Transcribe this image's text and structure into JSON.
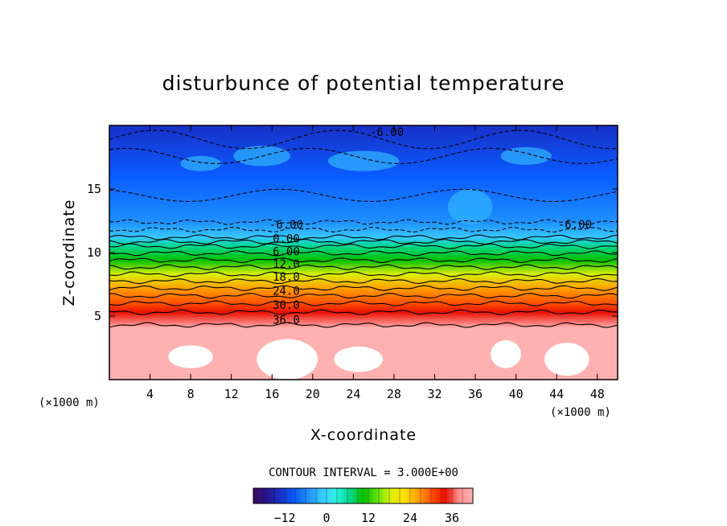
{
  "chart_data": {
    "type": "heatmap",
    "title": "disturbunce of potential temperature",
    "xlabel": "X-coordinate",
    "ylabel": "Z-coordinate",
    "x_unit": "(×1000 m)",
    "z_unit": "(×1000 m)",
    "xlim": [
      0,
      50
    ],
    "ylim": [
      0,
      20
    ],
    "x_ticks": [
      4,
      8,
      12,
      16,
      20,
      24,
      28,
      32,
      36,
      40,
      44,
      48
    ],
    "y_ticks": [
      5,
      10,
      15
    ],
    "contour_interval_text": "CONTOUR INTERVAL = 3.000E+00",
    "contour_interval": 3.0,
    "colorbar": {
      "min": -21,
      "max": 42,
      "ticks": [
        -12,
        0,
        12,
        24,
        36
      ],
      "colors": [
        "#3a0a5e",
        "#2a1490",
        "#1830c8",
        "#0a5cff",
        "#1e90ff",
        "#38c8ff",
        "#30f0e0",
        "#00d890",
        "#00c000",
        "#60e000",
        "#d8f000",
        "#ffe000",
        "#ffa000",
        "#ff5000",
        "#e81000",
        "#ff9090",
        "#ffb0b0"
      ]
    },
    "contour_labels": [
      {
        "text": "-6.00",
        "x": 27.3,
        "z": 19.5
      },
      {
        "text": "-6.00",
        "x": 17.4,
        "z": 12.2
      },
      {
        "text": "-6.00",
        "x": 45.8,
        "z": 12.2
      },
      {
        "text": "0.00",
        "x": 17.4,
        "z": 11.1
      },
      {
        "text": "6.00",
        "x": 17.4,
        "z": 10.1
      },
      {
        "text": "12.0",
        "x": 17.4,
        "z": 9.1
      },
      {
        "text": "18.0",
        "x": 17.4,
        "z": 8.1
      },
      {
        "text": "24.0",
        "x": 17.4,
        "z": 7.0
      },
      {
        "text": "30.0",
        "x": 17.4,
        "z": 5.9
      },
      {
        "text": "36.0",
        "x": 17.4,
        "z": 4.7
      }
    ],
    "vertical_profile": [
      {
        "z": 0.0,
        "value": 42
      },
      {
        "z": 4.1,
        "value": 40
      },
      {
        "z": 4.3,
        "value": 36
      },
      {
        "z": 5.3,
        "value": 33
      },
      {
        "z": 6.0,
        "value": 30
      },
      {
        "z": 7.2,
        "value": 24
      },
      {
        "z": 8.3,
        "value": 18
      },
      {
        "z": 9.4,
        "value": 12
      },
      {
        "z": 10.5,
        "value": 6
      },
      {
        "z": 11.2,
        "value": 0
      },
      {
        "z": 12.4,
        "value": -6
      },
      {
        "z": 16.0,
        "value": -9
      },
      {
        "z": 20.0,
        "value": -12
      }
    ]
  }
}
